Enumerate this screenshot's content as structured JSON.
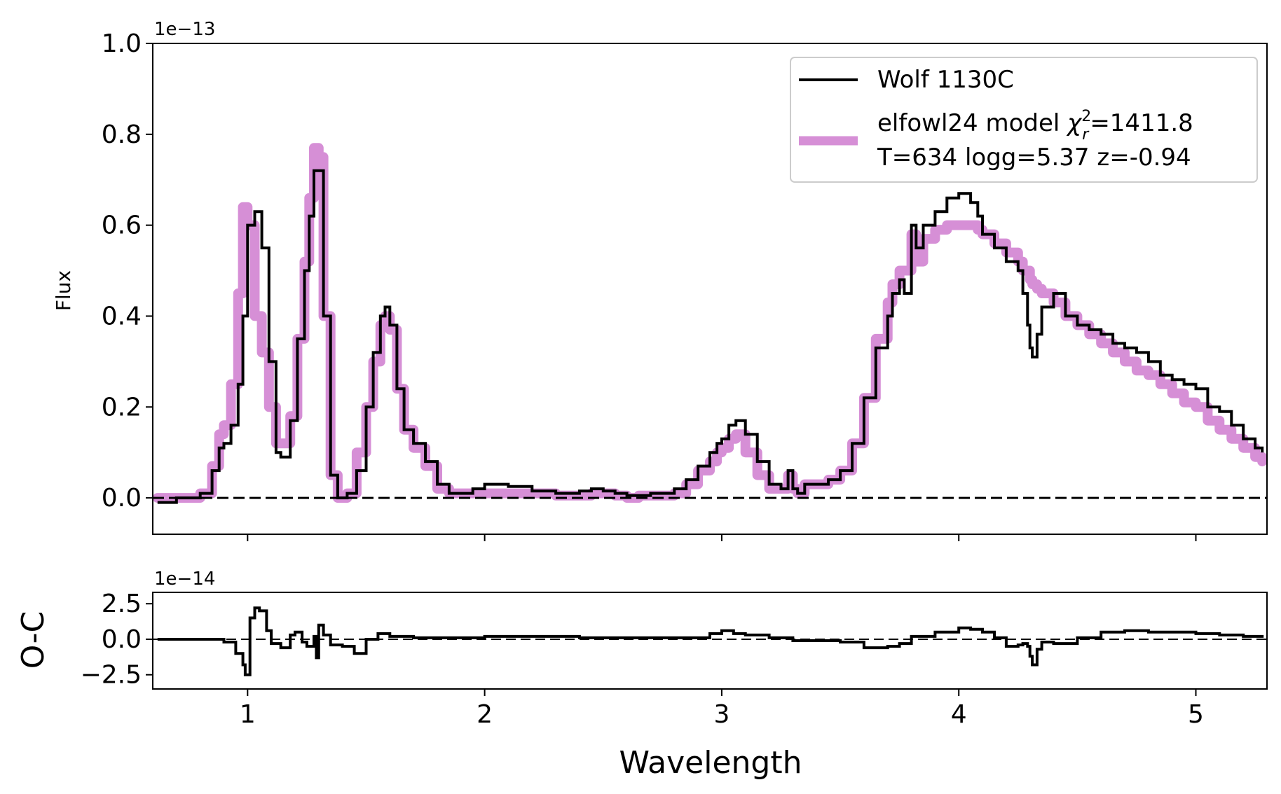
{
  "chart_data": [
    {
      "type": "line",
      "panel": "main",
      "title": "",
      "xlabel": "",
      "ylabel": "Flux",
      "offset_text": "1e−13",
      "xlim": [
        0.6,
        5.3
      ],
      "ylim": [
        -0.08,
        1.0
      ],
      "yticks": [
        0.0,
        0.2,
        0.4,
        0.6,
        0.8,
        1.0
      ],
      "ytick_labels": [
        "0.0",
        "0.2",
        "0.4",
        "0.6",
        "0.8",
        "1.0"
      ],
      "xticks": [
        1,
        2,
        3,
        4,
        5
      ],
      "grid": false,
      "legend_position": "top-right",
      "reference_line": 0.0,
      "series": [
        {
          "name": "Wolf 1130C",
          "color": "#000000",
          "x": [
            0.62,
            0.7,
            0.8,
            0.85,
            0.88,
            0.9,
            0.93,
            0.96,
            0.98,
            1.0,
            1.03,
            1.06,
            1.09,
            1.12,
            1.14,
            1.18,
            1.21,
            1.24,
            1.26,
            1.28,
            1.3,
            1.32,
            1.35,
            1.38,
            1.42,
            1.46,
            1.5,
            1.53,
            1.56,
            1.58,
            1.6,
            1.63,
            1.66,
            1.7,
            1.75,
            1.8,
            1.85,
            1.9,
            1.95,
            2.0,
            2.05,
            2.1,
            2.2,
            2.3,
            2.4,
            2.45,
            2.5,
            2.55,
            2.6,
            2.65,
            2.7,
            2.8,
            2.85,
            2.9,
            2.95,
            2.98,
            3.0,
            3.03,
            3.06,
            3.1,
            3.15,
            3.2,
            3.25,
            3.28,
            3.3,
            3.32,
            3.35,
            3.4,
            3.45,
            3.5,
            3.55,
            3.6,
            3.65,
            3.7,
            3.72,
            3.75,
            3.77,
            3.8,
            3.82,
            3.85,
            3.9,
            3.95,
            4.0,
            4.05,
            4.08,
            4.1,
            4.15,
            4.2,
            4.25,
            4.27,
            4.29,
            4.3,
            4.31,
            4.33,
            4.35,
            4.4,
            4.45,
            4.5,
            4.55,
            4.6,
            4.65,
            4.7,
            4.75,
            4.8,
            4.85,
            4.9,
            4.95,
            5.0,
            5.05,
            5.1,
            5.15,
            5.2,
            5.25,
            5.28
          ],
          "y": [
            -0.01,
            0.0,
            0.01,
            0.06,
            0.11,
            0.12,
            0.16,
            0.25,
            0.4,
            0.6,
            0.63,
            0.55,
            0.3,
            0.1,
            0.09,
            0.17,
            0.35,
            0.5,
            0.62,
            0.72,
            0.72,
            0.4,
            0.05,
            0.0,
            0.01,
            0.06,
            0.2,
            0.32,
            0.4,
            0.42,
            0.38,
            0.24,
            0.15,
            0.12,
            0.08,
            0.03,
            0.01,
            0.01,
            0.02,
            0.03,
            0.03,
            0.025,
            0.015,
            0.01,
            0.015,
            0.02,
            0.015,
            0.01,
            0.005,
            0.005,
            0.01,
            0.02,
            0.04,
            0.07,
            0.1,
            0.12,
            0.13,
            0.16,
            0.17,
            0.14,
            0.08,
            0.03,
            0.02,
            0.06,
            0.02,
            0.01,
            0.03,
            0.03,
            0.04,
            0.06,
            0.12,
            0.22,
            0.33,
            0.4,
            0.45,
            0.48,
            0.45,
            0.6,
            0.55,
            0.6,
            0.63,
            0.66,
            0.67,
            0.65,
            0.62,
            0.58,
            0.55,
            0.52,
            0.5,
            0.45,
            0.38,
            0.33,
            0.31,
            0.36,
            0.42,
            0.45,
            0.4,
            0.38,
            0.37,
            0.36,
            0.34,
            0.33,
            0.32,
            0.3,
            0.27,
            0.26,
            0.25,
            0.24,
            0.2,
            0.19,
            0.16,
            0.13,
            0.11,
            0.1
          ]
        },
        {
          "name": "elfowl24 model χ²ᵣ=1411.8",
          "label_prefix": "elfowl24 model ",
          "label_chi": "χ",
          "label_sup": "2",
          "label_sub": "r",
          "label_value": "=1411.8",
          "label_line2": "T=634 logg=5.37 z=-0.94",
          "color": "#d68fd6",
          "x": [
            0.62,
            0.7,
            0.8,
            0.85,
            0.88,
            0.9,
            0.93,
            0.96,
            0.98,
            1.0,
            1.03,
            1.06,
            1.09,
            1.12,
            1.14,
            1.18,
            1.21,
            1.24,
            1.26,
            1.28,
            1.3,
            1.32,
            1.35,
            1.38,
            1.42,
            1.46,
            1.5,
            1.53,
            1.56,
            1.58,
            1.6,
            1.63,
            1.66,
            1.7,
            1.75,
            1.8,
            1.85,
            1.9,
            1.95,
            2.0,
            2.05,
            2.1,
            2.2,
            2.3,
            2.4,
            2.45,
            2.5,
            2.55,
            2.6,
            2.65,
            2.7,
            2.8,
            2.85,
            2.9,
            2.95,
            2.98,
            3.0,
            3.03,
            3.06,
            3.1,
            3.15,
            3.2,
            3.25,
            3.28,
            3.3,
            3.32,
            3.35,
            3.4,
            3.45,
            3.5,
            3.55,
            3.6,
            3.65,
            3.7,
            3.72,
            3.75,
            3.77,
            3.8,
            3.82,
            3.85,
            3.9,
            3.95,
            4.0,
            4.05,
            4.08,
            4.1,
            4.15,
            4.2,
            4.25,
            4.27,
            4.29,
            4.3,
            4.31,
            4.33,
            4.35,
            4.4,
            4.45,
            4.5,
            4.55,
            4.6,
            4.65,
            4.7,
            4.75,
            4.8,
            4.85,
            4.9,
            4.95,
            5.0,
            5.05,
            5.1,
            5.15,
            5.2,
            5.25,
            5.28
          ],
          "y": [
            0.0,
            0.0,
            0.01,
            0.07,
            0.14,
            0.16,
            0.25,
            0.45,
            0.64,
            0.6,
            0.4,
            0.32,
            0.2,
            0.12,
            0.12,
            0.18,
            0.35,
            0.52,
            0.66,
            0.77,
            0.75,
            0.4,
            0.05,
            0.0,
            0.01,
            0.1,
            0.2,
            0.3,
            0.38,
            0.4,
            0.37,
            0.24,
            0.15,
            0.11,
            0.07,
            0.02,
            0.01,
            0.01,
            0.01,
            0.01,
            0.01,
            0.01,
            0.01,
            0.005,
            0.005,
            0.01,
            0.01,
            0.005,
            0.0,
            0.005,
            0.005,
            0.01,
            0.03,
            0.06,
            0.08,
            0.1,
            0.11,
            0.13,
            0.14,
            0.1,
            0.05,
            0.02,
            0.02,
            0.05,
            0.02,
            0.01,
            0.03,
            0.03,
            0.04,
            0.06,
            0.12,
            0.22,
            0.35,
            0.43,
            0.47,
            0.5,
            0.5,
            0.58,
            0.52,
            0.57,
            0.59,
            0.6,
            0.6,
            0.6,
            0.59,
            0.58,
            0.56,
            0.54,
            0.52,
            0.5,
            0.5,
            0.48,
            0.47,
            0.46,
            0.45,
            0.43,
            0.4,
            0.38,
            0.36,
            0.34,
            0.32,
            0.3,
            0.28,
            0.27,
            0.25,
            0.23,
            0.21,
            0.2,
            0.17,
            0.15,
            0.13,
            0.11,
            0.09,
            0.08
          ]
        }
      ]
    },
    {
      "type": "line",
      "panel": "residual",
      "title": "",
      "xlabel": "Wavelength",
      "ylabel": "O-C",
      "offset_text": "1e−14",
      "xlim": [
        0.6,
        5.3
      ],
      "ylim": [
        -3.5,
        3.3
      ],
      "yticks": [
        2.5,
        0.0,
        -2.5
      ],
      "ytick_labels": [
        "2.5",
        "0.0",
        "−2.5"
      ],
      "xticks": [
        1,
        2,
        3,
        4,
        5
      ],
      "xtick_labels": [
        "1",
        "2",
        "3",
        "4",
        "5"
      ],
      "grid": false,
      "reference_line": 0.0,
      "series": [
        {
          "name": "O-C",
          "color": "#000000",
          "x": [
            0.62,
            0.8,
            0.9,
            0.95,
            0.98,
            0.99,
            1.01,
            1.03,
            1.05,
            1.08,
            1.1,
            1.14,
            1.18,
            1.2,
            1.23,
            1.25,
            1.28,
            1.29,
            1.3,
            1.32,
            1.35,
            1.4,
            1.45,
            1.5,
            1.55,
            1.6,
            1.7,
            1.8,
            2.0,
            2.2,
            2.4,
            2.6,
            2.8,
            2.95,
            3.0,
            3.05,
            3.1,
            3.2,
            3.3,
            3.5,
            3.6,
            3.7,
            3.75,
            3.8,
            3.9,
            4.0,
            4.05,
            4.1,
            4.15,
            4.2,
            4.25,
            4.27,
            4.29,
            4.3,
            4.31,
            4.33,
            4.35,
            4.4,
            4.5,
            4.6,
            4.7,
            4.8,
            4.9,
            5.0,
            5.1,
            5.2,
            5.28
          ],
          "y": [
            0.0,
            0.0,
            -0.2,
            -1.0,
            -1.8,
            -2.5,
            1.5,
            2.2,
            2.0,
            0.6,
            -0.3,
            -0.6,
            0.3,
            0.5,
            -0.2,
            -0.5,
            0.2,
            -1.3,
            1.0,
            0.3,
            -0.4,
            -0.5,
            -1.0,
            0.0,
            0.4,
            0.2,
            0.1,
            0.1,
            0.2,
            0.2,
            0.1,
            0.1,
            0.1,
            0.4,
            0.6,
            0.4,
            0.3,
            0.1,
            -0.1,
            -0.2,
            -0.6,
            -0.5,
            -0.3,
            0.2,
            0.5,
            0.8,
            0.7,
            0.5,
            0.1,
            -0.5,
            -0.4,
            -0.3,
            -0.5,
            -1.2,
            -1.8,
            -0.7,
            -0.2,
            -0.3,
            0.1,
            0.5,
            0.6,
            0.5,
            0.5,
            0.4,
            0.3,
            0.2,
            0.1
          ]
        }
      ]
    }
  ]
}
